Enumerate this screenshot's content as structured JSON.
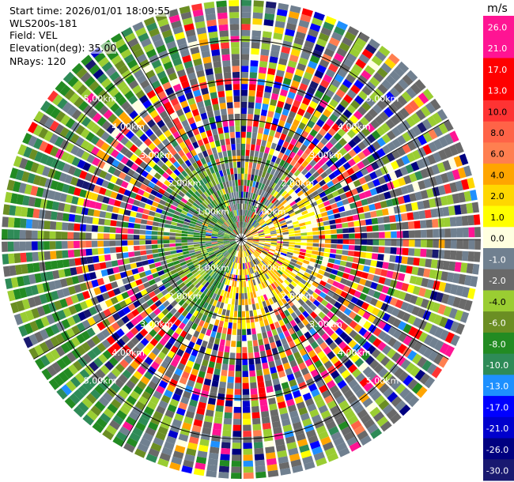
{
  "header": {
    "start_time": "Start time: 2026/01/01 18:09:55",
    "instrument": "WLS200s-181",
    "field": "Field: VEL",
    "elevation": "Elevation(deg): 35.00",
    "nrays": "NRays: 120"
  },
  "chart_data": {
    "type": "heatmap",
    "projection": "polar-ppi",
    "field": "VEL",
    "units": "m/s",
    "nrays": 120,
    "range_rings_km": [
      1,
      2,
      3,
      4,
      5
    ],
    "ring_labels": [
      "1.00km",
      "2.00km",
      "3.00km",
      "4.00km",
      "5.00km"
    ],
    "max_range_km": 6.0,
    "colorbar": {
      "label": "m/s",
      "ticks": [
        "26.0",
        "21.0",
        "17.0",
        "13.0",
        "10.0",
        "8.0",
        "6.0",
        "4.0",
        "2.0",
        "1.0",
        "0.0",
        "-1.0",
        "-2.0",
        "-4.0",
        "-6.0",
        "-8.0",
        "-10.0",
        "-13.0",
        "-17.0",
        "-21.0",
        "-26.0",
        "-30.0"
      ],
      "colors": [
        "#ff1493",
        "#ff1493",
        "#ff0000",
        "#ff0000",
        "#ff3333",
        "#ff6347",
        "#ff7f50",
        "#ffa500",
        "#ffd700",
        "#ffff00",
        "#ffffe0",
        "#708090",
        "#696969",
        "#9acd32",
        "#6b8e23",
        "#228b22",
        "#2e8b57",
        "#1e90ff",
        "#0000ff",
        "#0000cd",
        "#000080",
        "#191970"
      ]
    }
  }
}
